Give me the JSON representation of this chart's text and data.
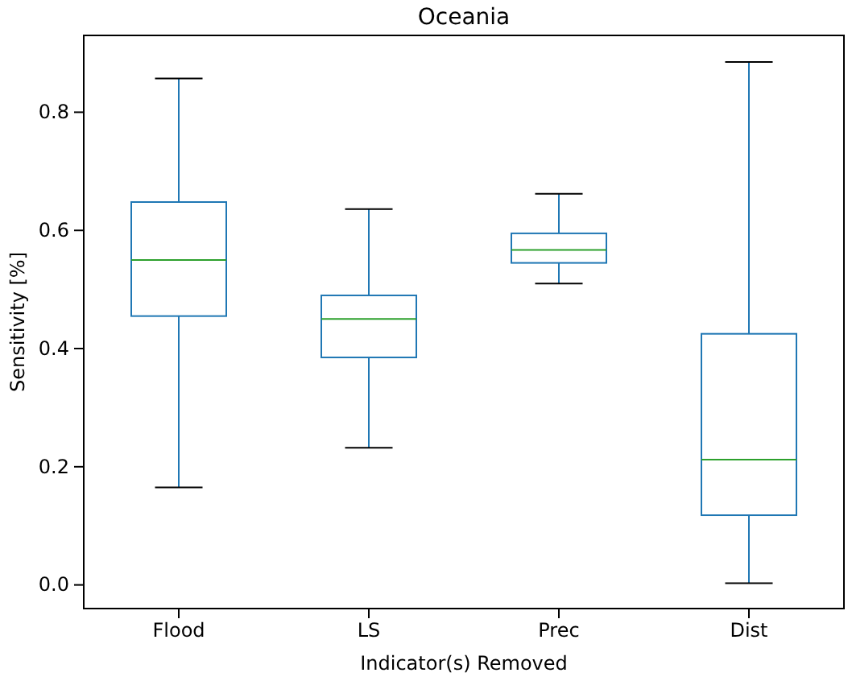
{
  "chart_data": {
    "type": "box",
    "title": "Oceania",
    "xlabel": "Indicator(s) Removed",
    "ylabel": "Sensitivity [%]",
    "categories": [
      "Flood",
      "LS",
      "Prec",
      "Dist"
    ],
    "boxes": [
      {
        "low": 0.165,
        "q1": 0.455,
        "median": 0.55,
        "q3": 0.648,
        "high": 0.857
      },
      {
        "low": 0.232,
        "q1": 0.385,
        "median": 0.45,
        "q3": 0.49,
        "high": 0.636
      },
      {
        "low": 0.51,
        "q1": 0.545,
        "median": 0.567,
        "q3": 0.595,
        "high": 0.662
      },
      {
        "low": 0.003,
        "q1": 0.118,
        "median": 0.212,
        "q3": 0.425,
        "high": 0.885
      }
    ],
    "color": "#1f77b4",
    "ylim": [
      -0.04,
      0.93
    ],
    "yticks": [
      {
        "value": 0,
        "label": "0.0"
      },
      0.2,
      0.4,
      0.6,
      0.8
    ],
    "grid": false
  }
}
